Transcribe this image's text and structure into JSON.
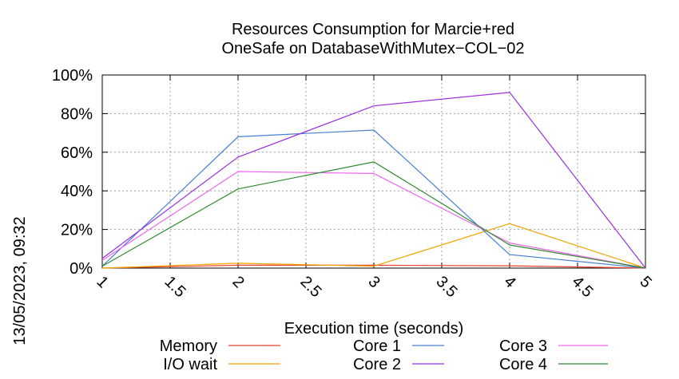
{
  "chart_data": {
    "type": "line",
    "title_lines": [
      "Resources Consumption for Marcie+red",
      "OneSafe on DatabaseWithMutex−COL−02"
    ],
    "xlabel": "Execution time (seconds)",
    "ylabel": "",
    "xlim": [
      1,
      5
    ],
    "ylim": [
      0,
      100
    ],
    "x_ticks": [
      "1",
      "1.5",
      "2",
      "2.5",
      "3",
      "3.5",
      "4",
      "4.5",
      "5"
    ],
    "y_ticks": [
      "0%",
      "20%",
      "40%",
      "60%",
      "80%",
      "100%"
    ],
    "grid": true,
    "legend_position": "bottom",
    "timestamp": "13/05/2023, 09:32",
    "x": [
      1,
      2,
      3,
      4,
      5
    ],
    "series": [
      {
        "name": "Memory",
        "color": "#e8402a",
        "values": [
          0,
          1.5,
          1.5,
          1.2,
          0
        ]
      },
      {
        "name": "I/O wait",
        "color": "#f0a500",
        "values": [
          0,
          2.5,
          1,
          23,
          0
        ]
      },
      {
        "name": "Core 1",
        "color": "#4a7fd4",
        "values": [
          1,
          68,
          71.5,
          7,
          0
        ]
      },
      {
        "name": "Core 2",
        "color": "#9b30e0",
        "values": [
          5,
          57.5,
          84,
          91,
          0
        ]
      },
      {
        "name": "Core 3",
        "color": "#ee66ee",
        "values": [
          4,
          50,
          49,
          13,
          0
        ]
      },
      {
        "name": "Core 4",
        "color": "#2e8b2e",
        "values": [
          1,
          41,
          55,
          12,
          0
        ]
      }
    ]
  }
}
